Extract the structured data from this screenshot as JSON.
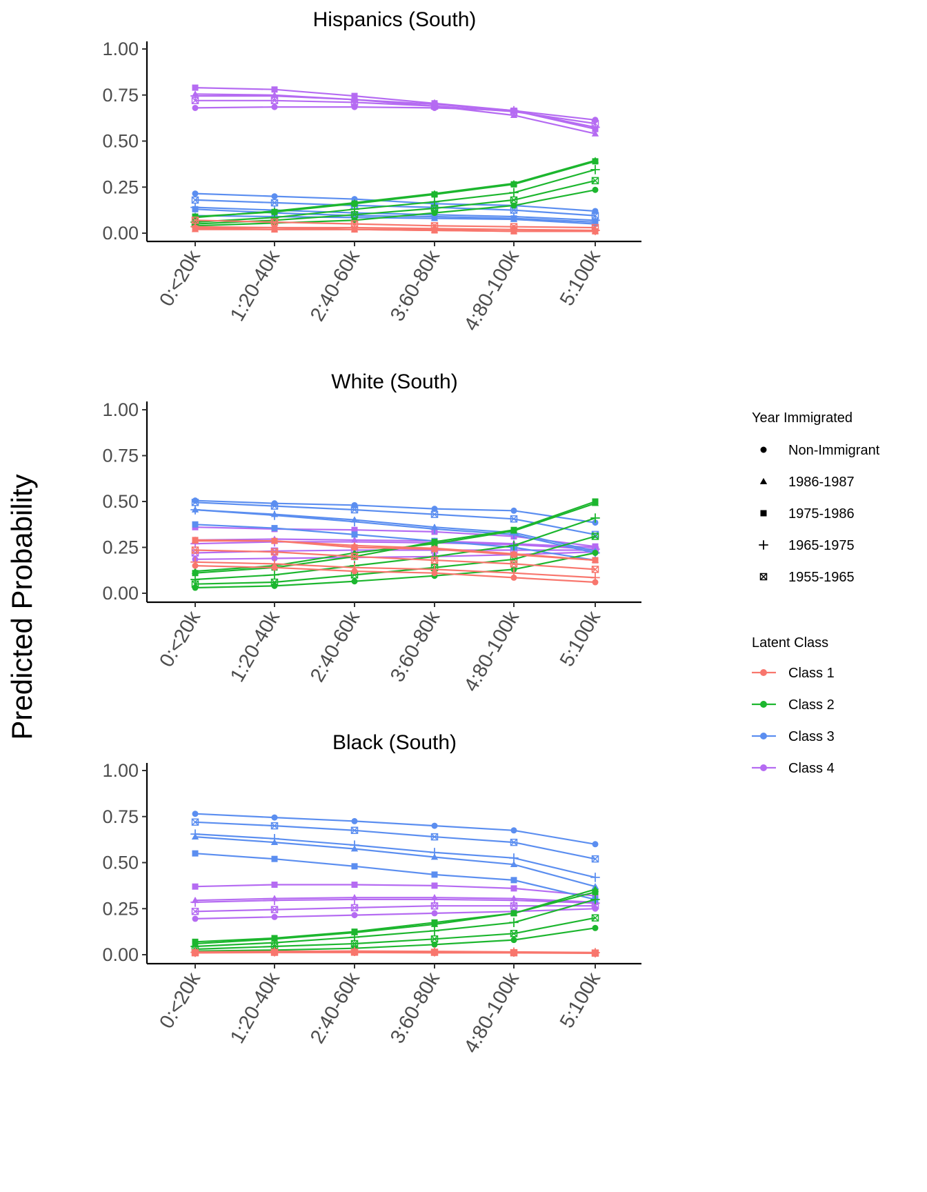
{
  "figure": {
    "ylabel": "Predicted Probability"
  },
  "legend": {
    "shape_title": "Year Immigrated",
    "shapes": [
      {
        "label": "Non-Immigrant",
        "shape": "circle"
      },
      {
        "label": "1986-1987",
        "shape": "triangle"
      },
      {
        "label": "1975-1986",
        "shape": "square"
      },
      {
        "label": "1965-1975",
        "shape": "plus"
      },
      {
        "label": "1955-1965",
        "shape": "boxx"
      }
    ],
    "color_title": "Latent Class",
    "classes": [
      {
        "label": "Class 1",
        "color": "#F8766D"
      },
      {
        "label": "Class 2",
        "color": "#1CB62E"
      },
      {
        "label": "Class 3",
        "color": "#5B8EF0"
      },
      {
        "label": "Class 4",
        "color": "#B56BF2"
      }
    ]
  },
  "chart_data": [
    {
      "type": "line",
      "title": "Hispanics (South)",
      "categories": [
        "0:<20k",
        "1:20-40k",
        "2:40-60k",
        "3:60-80k",
        "4:80-100k",
        "5:100k"
      ],
      "yticks": [
        "0.00",
        "0.25",
        "0.50",
        "0.75",
        "1.00"
      ],
      "ylim": [
        0,
        1
      ],
      "series": [
        {
          "class": "Class 1",
          "group": "Non-Immigrant",
          "values": [
            0.03,
            0.03,
            0.02,
            0.02,
            0.02,
            0.01
          ]
        },
        {
          "class": "Class 1",
          "group": "1986-1987",
          "values": [
            0.02,
            0.02,
            0.02,
            0.015,
            0.01,
            0.01
          ]
        },
        {
          "class": "Class 1",
          "group": "1975-1986",
          "values": [
            0.025,
            0.02,
            0.02,
            0.015,
            0.01,
            0.01
          ]
        },
        {
          "class": "Class 1",
          "group": "1965-1975",
          "values": [
            0.035,
            0.03,
            0.03,
            0.025,
            0.02,
            0.015
          ]
        },
        {
          "class": "Class 1",
          "group": "1955-1965",
          "values": [
            0.07,
            0.06,
            0.05,
            0.04,
            0.035,
            0.03
          ]
        },
        {
          "class": "Class 2",
          "group": "Non-Immigrant",
          "values": [
            0.04,
            0.055,
            0.07,
            0.11,
            0.15,
            0.235
          ]
        },
        {
          "class": "Class 2",
          "group": "1986-1987",
          "values": [
            0.085,
            0.12,
            0.165,
            0.215,
            0.27,
            0.395
          ]
        },
        {
          "class": "Class 2",
          "group": "1975-1986",
          "values": [
            0.09,
            0.115,
            0.16,
            0.21,
            0.265,
            0.39
          ]
        },
        {
          "class": "Class 2",
          "group": "1965-1975",
          "values": [
            0.06,
            0.085,
            0.13,
            0.17,
            0.22,
            0.345
          ]
        },
        {
          "class": "Class 2",
          "group": "1955-1965",
          "values": [
            0.05,
            0.07,
            0.1,
            0.135,
            0.18,
            0.285
          ]
        },
        {
          "class": "Class 3",
          "group": "Non-Immigrant",
          "values": [
            0.215,
            0.2,
            0.185,
            0.16,
            0.15,
            0.12
          ]
        },
        {
          "class": "Class 3",
          "group": "1986-1987",
          "values": [
            0.095,
            0.09,
            0.085,
            0.08,
            0.075,
            0.05
          ]
        },
        {
          "class": "Class 3",
          "group": "1975-1986",
          "values": [
            0.13,
            0.11,
            0.095,
            0.09,
            0.08,
            0.06
          ]
        },
        {
          "class": "Class 3",
          "group": "1965-1975",
          "values": [
            0.14,
            0.125,
            0.11,
            0.1,
            0.09,
            0.07
          ]
        },
        {
          "class": "Class 3",
          "group": "1955-1965",
          "values": [
            0.18,
            0.165,
            0.15,
            0.14,
            0.125,
            0.095
          ]
        },
        {
          "class": "Class 4",
          "group": "Non-Immigrant",
          "values": [
            0.68,
            0.685,
            0.685,
            0.68,
            0.665,
            0.615
          ]
        },
        {
          "class": "Class 4",
          "group": "1986-1987",
          "values": [
            0.755,
            0.75,
            0.725,
            0.69,
            0.64,
            0.54
          ]
        },
        {
          "class": "Class 4",
          "group": "1975-1986",
          "values": [
            0.79,
            0.78,
            0.745,
            0.705,
            0.665,
            0.565
          ]
        },
        {
          "class": "Class 4",
          "group": "1965-1975",
          "values": [
            0.745,
            0.745,
            0.725,
            0.7,
            0.665,
            0.575
          ]
        },
        {
          "class": "Class 4",
          "group": "1955-1965",
          "values": [
            0.72,
            0.72,
            0.71,
            0.69,
            0.66,
            0.595
          ]
        }
      ]
    },
    {
      "type": "line",
      "title": "White (South)",
      "categories": [
        "0:<20k",
        "1:20-40k",
        "2:40-60k",
        "3:60-80k",
        "4:80-100k",
        "5:100k"
      ],
      "yticks": [
        "0.00",
        "0.25",
        "0.50",
        "0.75",
        "1.00"
      ],
      "ylim": [
        0,
        1
      ],
      "series": [
        {
          "class": "Class 1",
          "group": "Non-Immigrant",
          "values": [
            0.15,
            0.14,
            0.12,
            0.11,
            0.085,
            0.06
          ]
        },
        {
          "class": "Class 1",
          "group": "1986-1987",
          "values": [
            0.285,
            0.285,
            0.26,
            0.245,
            0.215,
            0.18
          ]
        },
        {
          "class": "Class 1",
          "group": "1975-1986",
          "values": [
            0.29,
            0.285,
            0.25,
            0.24,
            0.21,
            0.18
          ]
        },
        {
          "class": "Class 1",
          "group": "1965-1975",
          "values": [
            0.17,
            0.16,
            0.14,
            0.13,
            0.11,
            0.085
          ]
        },
        {
          "class": "Class 1",
          "group": "1955-1965",
          "values": [
            0.235,
            0.225,
            0.2,
            0.18,
            0.16,
            0.13
          ]
        },
        {
          "class": "Class 2",
          "group": "Non-Immigrant",
          "values": [
            0.03,
            0.04,
            0.065,
            0.095,
            0.13,
            0.22
          ]
        },
        {
          "class": "Class 2",
          "group": "1986-1987",
          "values": [
            0.12,
            0.15,
            0.22,
            0.27,
            0.34,
            0.49
          ]
        },
        {
          "class": "Class 2",
          "group": "1975-1986",
          "values": [
            0.11,
            0.14,
            0.2,
            0.28,
            0.345,
            0.5
          ]
        },
        {
          "class": "Class 2",
          "group": "1965-1975",
          "values": [
            0.075,
            0.1,
            0.15,
            0.2,
            0.26,
            0.41
          ]
        },
        {
          "class": "Class 2",
          "group": "1955-1965",
          "values": [
            0.05,
            0.06,
            0.1,
            0.14,
            0.185,
            0.31
          ]
        },
        {
          "class": "Class 3",
          "group": "Non-Immigrant",
          "values": [
            0.505,
            0.49,
            0.48,
            0.46,
            0.45,
            0.385
          ]
        },
        {
          "class": "Class 3",
          "group": "1986-1987",
          "values": [
            0.455,
            0.43,
            0.4,
            0.36,
            0.33,
            0.23
          ]
        },
        {
          "class": "Class 3",
          "group": "1975-1986",
          "values": [
            0.375,
            0.355,
            0.32,
            0.285,
            0.25,
            0.18
          ]
        },
        {
          "class": "Class 3",
          "group": "1965-1975",
          "values": [
            0.455,
            0.425,
            0.39,
            0.35,
            0.32,
            0.22
          ]
        },
        {
          "class": "Class 3",
          "group": "1955-1965",
          "values": [
            0.495,
            0.475,
            0.455,
            0.43,
            0.405,
            0.32
          ]
        },
        {
          "class": "Class 4",
          "group": "Non-Immigrant",
          "values": [
            0.185,
            0.19,
            0.195,
            0.2,
            0.21,
            0.225
          ]
        },
        {
          "class": "Class 4",
          "group": "1986-1987",
          "values": [
            0.29,
            0.295,
            0.29,
            0.285,
            0.27,
            0.25
          ]
        },
        {
          "class": "Class 4",
          "group": "1975-1986",
          "values": [
            0.36,
            0.35,
            0.345,
            0.335,
            0.31,
            0.255
          ]
        },
        {
          "class": "Class 4",
          "group": "1965-1975",
          "values": [
            0.27,
            0.28,
            0.28,
            0.275,
            0.265,
            0.24
          ]
        },
        {
          "class": "Class 4",
          "group": "1955-1965",
          "values": [
            0.22,
            0.23,
            0.235,
            0.235,
            0.235,
            0.235
          ]
        }
      ]
    },
    {
      "type": "line",
      "title": "Black (South)",
      "categories": [
        "0:<20k",
        "1:20-40k",
        "2:40-60k",
        "3:60-80k",
        "4:80-100k",
        "5:100k"
      ],
      "yticks": [
        "0.00",
        "0.25",
        "0.50",
        "0.75",
        "1.00"
      ],
      "ylim": [
        0,
        1
      ],
      "series": [
        {
          "class": "Class 1",
          "group": "Non-Immigrant",
          "values": [
            0.01,
            0.012,
            0.012,
            0.01,
            0.01,
            0.008
          ]
        },
        {
          "class": "Class 1",
          "group": "1986-1987",
          "values": [
            0.015,
            0.018,
            0.02,
            0.018,
            0.015,
            0.012
          ]
        },
        {
          "class": "Class 1",
          "group": "1975-1986",
          "values": [
            0.012,
            0.015,
            0.015,
            0.015,
            0.012,
            0.01
          ]
        },
        {
          "class": "Class 1",
          "group": "1965-1975",
          "values": [
            0.013,
            0.016,
            0.018,
            0.016,
            0.014,
            0.011
          ]
        },
        {
          "class": "Class 1",
          "group": "1955-1965",
          "values": [
            0.011,
            0.013,
            0.014,
            0.013,
            0.011,
            0.009
          ]
        },
        {
          "class": "Class 2",
          "group": "Non-Immigrant",
          "values": [
            0.02,
            0.025,
            0.035,
            0.055,
            0.08,
            0.145
          ]
        },
        {
          "class": "Class 2",
          "group": "1986-1987",
          "values": [
            0.06,
            0.085,
            0.12,
            0.165,
            0.225,
            0.355
          ]
        },
        {
          "class": "Class 2",
          "group": "1975-1986",
          "values": [
            0.07,
            0.09,
            0.125,
            0.175,
            0.225,
            0.34
          ]
        },
        {
          "class": "Class 2",
          "group": "1965-1975",
          "values": [
            0.045,
            0.065,
            0.095,
            0.13,
            0.175,
            0.3
          ]
        },
        {
          "class": "Class 2",
          "group": "1955-1965",
          "values": [
            0.03,
            0.045,
            0.06,
            0.085,
            0.115,
            0.2
          ]
        },
        {
          "class": "Class 3",
          "group": "Non-Immigrant",
          "values": [
            0.765,
            0.745,
            0.725,
            0.7,
            0.675,
            0.6
          ]
        },
        {
          "class": "Class 3",
          "group": "1986-1987",
          "values": [
            0.64,
            0.61,
            0.575,
            0.53,
            0.49,
            0.37
          ]
        },
        {
          "class": "Class 3",
          "group": "1975-1986",
          "values": [
            0.55,
            0.52,
            0.48,
            0.435,
            0.405,
            0.3
          ]
        },
        {
          "class": "Class 3",
          "group": "1965-1975",
          "values": [
            0.655,
            0.63,
            0.595,
            0.555,
            0.525,
            0.42
          ]
        },
        {
          "class": "Class 3",
          "group": "1955-1965",
          "values": [
            0.72,
            0.7,
            0.675,
            0.64,
            0.61,
            0.52
          ]
        },
        {
          "class": "Class 4",
          "group": "Non-Immigrant",
          "values": [
            0.195,
            0.205,
            0.215,
            0.225,
            0.235,
            0.25
          ]
        },
        {
          "class": "Class 4",
          "group": "1986-1987",
          "values": [
            0.295,
            0.305,
            0.31,
            0.31,
            0.305,
            0.285
          ]
        },
        {
          "class": "Class 4",
          "group": "1975-1986",
          "values": [
            0.37,
            0.38,
            0.38,
            0.375,
            0.36,
            0.32
          ]
        },
        {
          "class": "Class 4",
          "group": "1965-1975",
          "values": [
            0.285,
            0.295,
            0.3,
            0.3,
            0.295,
            0.28
          ]
        },
        {
          "class": "Class 4",
          "group": "1955-1965",
          "values": [
            0.235,
            0.245,
            0.255,
            0.265,
            0.265,
            0.265
          ]
        }
      ]
    }
  ]
}
